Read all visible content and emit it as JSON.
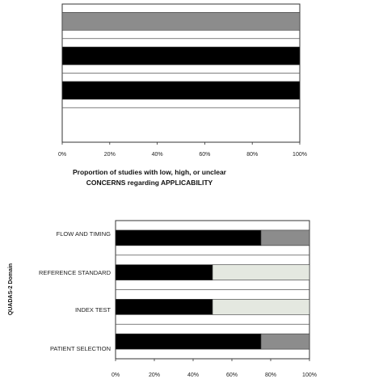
{
  "chart_data": [
    {
      "type": "bar",
      "orientation": "horizontal",
      "stacked": true,
      "categories": [
        "",
        "",
        "",
        ""
      ],
      "series": [
        {
          "values": [
            0,
            100,
            100,
            0
          ],
          "color": "#000000"
        },
        {
          "values": [
            0,
            0,
            0,
            0
          ],
          "color": "#e4e8e0"
        },
        {
          "values": [
            100,
            0,
            0,
            0
          ],
          "color": "#8c8c8c"
        }
      ],
      "xlabel": "Proportion of studies with low, high, or unclear CONCERNS regarding APPLICABILITY",
      "xlabel_lines": [
        "Proportion of studies with low, high, or unclear",
        "CONCERNS regarding APPLICABILITY"
      ],
      "xticks": [
        "0%",
        "20%",
        "40%",
        "60%",
        "80%",
        "100%"
      ],
      "xlim": [
        0,
        100
      ],
      "grid": true,
      "legend": "none"
    },
    {
      "type": "bar",
      "orientation": "horizontal",
      "stacked": true,
      "categories": [
        "FLOW AND TIMING",
        "REFERENCE STANDARD",
        "INDEX TEST",
        "PATIENT SELECTION"
      ],
      "series": [
        {
          "values": [
            75,
            50,
            50,
            75
          ],
          "color": "#000000"
        },
        {
          "values": [
            0,
            50,
            50,
            0
          ],
          "color": "#e4e8e0"
        },
        {
          "values": [
            25,
            0,
            0,
            25
          ],
          "color": "#8c8c8c"
        }
      ],
      "ylabel": "QUADAS-2 Domain",
      "xticks": [
        "0%",
        "20%",
        "40%",
        "60%",
        "80%",
        "100%"
      ],
      "xlim": [
        0,
        100
      ],
      "grid": true,
      "legend": "none"
    }
  ]
}
